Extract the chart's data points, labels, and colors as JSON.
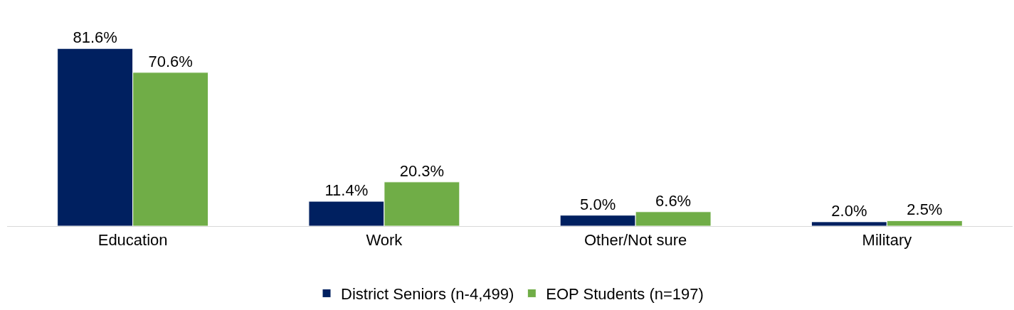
{
  "chart_data": {
    "type": "bar",
    "categories": [
      "Education",
      "Work",
      "Other/Not sure",
      "Military"
    ],
    "series": [
      {
        "name": "District Seniors (n-4,499)",
        "color": "#002060",
        "values": [
          81.6,
          11.4,
          5.0,
          2.0
        ],
        "value_labels": [
          "81.6%",
          "11.4%",
          "5.0%",
          "2.0%"
        ]
      },
      {
        "name": "EOP Students (n=197)",
        "color": "#70ad47",
        "values": [
          70.6,
          20.3,
          6.6,
          2.5
        ],
        "value_labels": [
          "70.6%",
          "20.3%",
          "6.6%",
          "2.5%"
        ]
      }
    ],
    "legend": "bottom",
    "tick_labels": "x"
  }
}
